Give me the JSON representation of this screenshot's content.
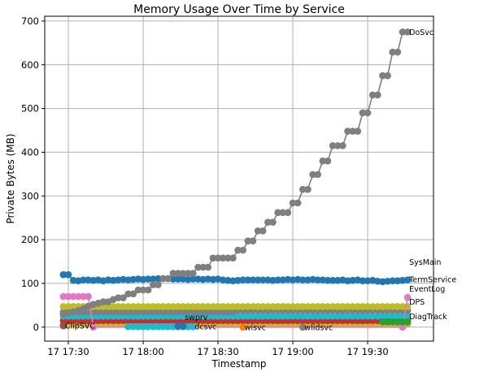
{
  "chart_data": {
    "type": "line",
    "title": "Memory Usage Over Time by Service",
    "xlabel": "Timestamp",
    "ylabel": "Private Bytes (MB)",
    "ylim": [
      -32,
      711
    ],
    "xlim": [
      "17:20:32",
      "19:56:24"
    ],
    "grid": true,
    "yticks": [
      0,
      100,
      200,
      300,
      400,
      500,
      600,
      700
    ],
    "xticks": [
      {
        "value": "17:30",
        "label": "17 17:30"
      },
      {
        "value": "18:00",
        "label": "17 18:00"
      },
      {
        "value": "18:30",
        "label": "17 18:30"
      },
      {
        "value": "19:00",
        "label": "17 19:00"
      },
      {
        "value": "19:30",
        "label": "17 19:30"
      }
    ],
    "x": [
      "17:28",
      "17:30",
      "17:32",
      "17:34",
      "17:36",
      "17:38",
      "17:40",
      "17:42",
      "17:44",
      "17:46",
      "17:48",
      "17:50",
      "17:52",
      "17:54",
      "17:56",
      "17:58",
      "18:00",
      "18:02",
      "18:04",
      "18:06",
      "18:08",
      "18:10",
      "18:12",
      "18:14",
      "18:16",
      "18:18",
      "18:20",
      "18:22",
      "18:24",
      "18:26",
      "18:28",
      "18:30",
      "18:32",
      "18:34",
      "18:36",
      "18:38",
      "18:40",
      "18:42",
      "18:44",
      "18:46",
      "18:48",
      "18:50",
      "18:52",
      "18:54",
      "18:56",
      "18:58",
      "19:00",
      "19:02",
      "19:04",
      "19:06",
      "19:08",
      "19:10",
      "19:12",
      "19:14",
      "19:16",
      "19:18",
      "19:20",
      "19:22",
      "19:24",
      "19:26",
      "19:28",
      "19:30",
      "19:32",
      "19:34",
      "19:36",
      "19:38",
      "19:40",
      "19:42",
      "19:44",
      "19:46"
    ],
    "series": [
      {
        "color": "#bcbd22",
        "values": [
          7,
          7,
          7,
          7,
          7,
          7,
          7,
          7,
          7,
          7,
          7,
          7,
          7,
          7,
          7,
          7,
          7,
          7,
          7,
          7,
          7,
          7,
          7,
          7,
          7,
          7,
          7,
          7,
          7,
          7,
          7,
          7,
          7,
          7,
          7,
          7,
          7,
          7,
          7,
          7,
          7,
          7,
          7,
          7,
          7,
          7,
          7,
          7,
          7,
          7,
          7,
          7,
          7,
          7,
          7,
          7,
          7,
          7,
          7,
          7,
          7,
          7,
          7,
          7,
          7,
          7,
          7,
          7,
          7,
          7
        ]
      },
      {
        "color": "#d62728",
        "values": [
          15,
          15,
          15,
          15,
          15,
          15,
          15,
          15,
          15,
          15,
          15,
          15,
          15,
          15,
          15,
          15,
          15,
          15,
          15,
          15,
          15,
          15,
          15,
          15,
          15,
          15,
          15,
          15,
          15,
          15,
          15,
          15,
          15,
          15,
          15,
          15,
          15,
          15,
          15,
          15,
          15,
          15,
          15,
          15,
          15,
          15,
          15,
          15,
          15,
          15,
          15,
          15,
          15,
          15,
          15,
          15,
          15,
          15,
          15,
          15,
          15,
          15,
          15,
          15,
          15,
          15,
          15,
          15,
          15,
          15
        ]
      },
      {
        "name": "DiagTrack",
        "color": "#17becf",
        "values": [
          25,
          25,
          25,
          25,
          25,
          25,
          25,
          25,
          25,
          25,
          25,
          25,
          25,
          25,
          25,
          25,
          25,
          25,
          25,
          25,
          25,
          25,
          25,
          25,
          25,
          25,
          25,
          25,
          25,
          25,
          25,
          25,
          25,
          25,
          25,
          25,
          25,
          25,
          25,
          25,
          25,
          25,
          25,
          25,
          25,
          25,
          25,
          25,
          25,
          25,
          25,
          25,
          25,
          25,
          25,
          25,
          25,
          25,
          25,
          25,
          25,
          25,
          25,
          25,
          25,
          25,
          25,
          25,
          25,
          25
        ]
      },
      {
        "name": "DPS",
        "color": "#7f7f7f",
        "values": [
          35,
          35,
          35,
          35,
          35,
          35,
          35,
          35,
          35,
          35,
          35,
          35,
          35,
          35,
          35,
          35,
          35,
          35,
          35,
          35,
          35,
          35,
          35,
          35,
          35,
          35,
          35,
          35,
          35,
          35,
          35,
          35,
          35,
          35,
          35,
          38,
          38,
          38,
          38,
          38,
          38,
          38,
          38,
          38,
          38,
          38,
          38,
          38,
          38,
          38,
          38,
          38,
          38,
          38,
          38,
          38,
          38,
          38,
          38,
          38,
          38,
          38,
          38,
          38,
          38,
          38,
          38,
          38,
          38,
          38
        ]
      },
      {
        "name": "EventLog",
        "color": "#bcbd22",
        "values": [
          47,
          47,
          47,
          47,
          47,
          47,
          47,
          47,
          47,
          47,
          47,
          47,
          47,
          47,
          47,
          47,
          47,
          47,
          47,
          47,
          47,
          47,
          47,
          47,
          47,
          47,
          47,
          47,
          47,
          47,
          47,
          47,
          47,
          47,
          47,
          47,
          47,
          47,
          47,
          47,
          47,
          47,
          47,
          47,
          47,
          47,
          47,
          47,
          47,
          47,
          47,
          47,
          47,
          47,
          47,
          47,
          47,
          47,
          47,
          47,
          47,
          47,
          47,
          47,
          47,
          47,
          47,
          47,
          47,
          47
        ]
      },
      {
        "name": "TermService",
        "color": "#e377c2",
        "x": [
          "17:28",
          "17:30",
          "17:32",
          "17:34",
          "17:36",
          "17:38",
          "17:40",
          "19:44",
          "19:46"
        ],
        "values": [
          70,
          70,
          70,
          70,
          70,
          70,
          0,
          0,
          68
        ]
      },
      {
        "name": "SysMain",
        "color": "#1f77b4",
        "values": [
          120,
          120,
          107,
          106,
          108,
          108,
          107,
          108,
          106,
          108,
          107,
          108,
          109,
          108,
          109,
          110,
          109,
          110,
          110,
          111,
          111,
          111,
          110,
          110,
          110,
          109,
          110,
          110,
          109,
          110,
          109,
          110,
          108,
          107,
          106,
          107,
          108,
          108,
          108,
          108,
          108,
          108,
          107,
          108,
          108,
          109,
          108,
          109,
          108,
          108,
          109,
          108,
          108,
          107,
          107,
          107,
          108,
          106,
          107,
          108,
          106,
          106,
          107,
          105,
          104,
          105,
          106,
          106,
          107,
          108
        ]
      },
      {
        "name": "DoSvc",
        "color": "#7f7f7f",
        "values": [
          30,
          33,
          35,
          38,
          42,
          48,
          52,
          55,
          58,
          58,
          63,
          67,
          67,
          76,
          76,
          85,
          85,
          85,
          97,
          97,
          111,
          111,
          123,
          123,
          123,
          123,
          123,
          137,
          137,
          137,
          158,
          158,
          158,
          158,
          158,
          176,
          176,
          197,
          197,
          220,
          220,
          240,
          240,
          262,
          262,
          262,
          284,
          284,
          315,
          315,
          349,
          349,
          380,
          380,
          415,
          415,
          415,
          448,
          448,
          448,
          490,
          490,
          531,
          531,
          575,
          575,
          629,
          629,
          675,
          675
        ]
      },
      {
        "name": "ClipSVC",
        "color": "#8c564b",
        "x": [
          "17:28"
        ],
        "values": [
          3
        ]
      },
      {
        "name": "dcsvc",
        "color": "#17becf",
        "x": [
          "17:54",
          "17:56",
          "17:58",
          "18:00",
          "18:02",
          "18:04",
          "18:06",
          "18:08",
          "18:10",
          "18:12",
          "18:14",
          "18:16",
          "18:18",
          "18:20"
        ],
        "values": [
          1,
          1,
          1,
          1,
          1,
          1,
          1,
          1,
          1,
          1,
          1,
          1,
          1,
          1
        ]
      },
      {
        "name": "swprv",
        "color": "#1f77b4",
        "x": [
          "18:14",
          "18:16"
        ],
        "values": [
          2,
          2
        ]
      },
      {
        "name": "wisvc",
        "color": "#ff7f0e",
        "x": [
          "18:40"
        ],
        "values": [
          0
        ]
      },
      {
        "name": "wlidsvc",
        "color": "#7f7f7f",
        "x": [
          "19:04"
        ],
        "values": [
          0
        ]
      },
      {
        "color": "#2ca02c",
        "x": [
          "19:36",
          "19:38",
          "19:40",
          "19:42",
          "19:44",
          "19:46"
        ],
        "values": [
          12,
          12,
          12,
          12,
          12,
          12
        ]
      }
    ]
  }
}
